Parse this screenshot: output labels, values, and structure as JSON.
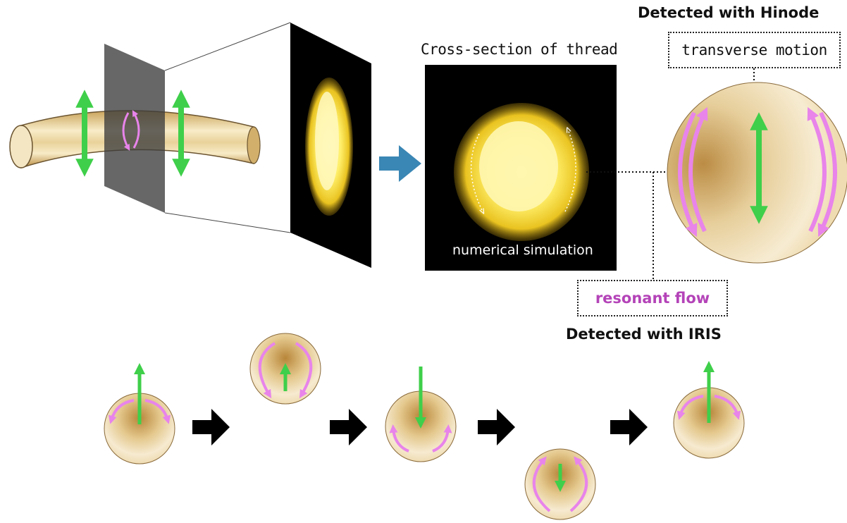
{
  "labels": {
    "hinode_title": "Detected with Hinode",
    "transverse_box": "transverse motion",
    "cross_section_title": "Cross-section of thread",
    "simulation_label": "numerical simulation",
    "resonant_box": "resonant flow",
    "iris_title": "Detected with IRIS"
  },
  "colors": {
    "green_arrow": "#3fcf4a",
    "pink_flow": "#e884ea",
    "tube_gold": "#c9a35a",
    "tube_light": "#f8ecc8",
    "blue_arrow": "#3a86b4",
    "flame_yellow": "#ffe84a",
    "panel_black": "#000000",
    "resonant_text": "#b443b8"
  },
  "icons": [
    "double-headed-arrow-icon",
    "circular-flow-arrow-icon",
    "right-arrow-icon",
    "small-flow-arrow-icon"
  ]
}
